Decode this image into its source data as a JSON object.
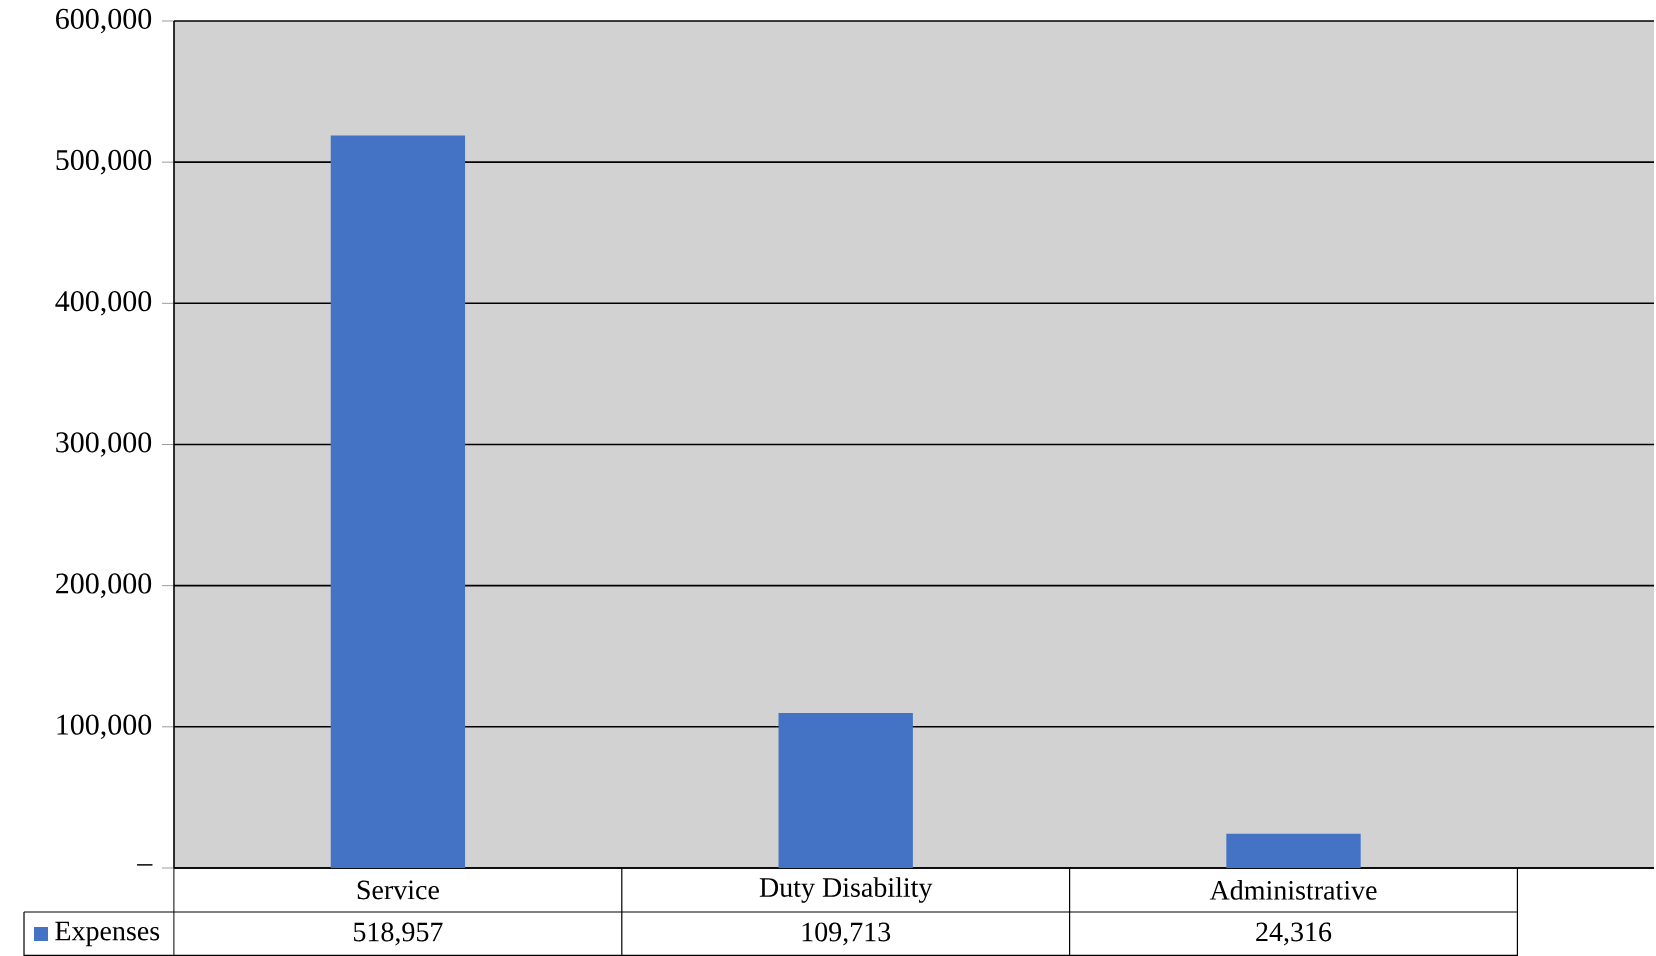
{
  "chart_data": {
    "type": "bar",
    "categories": [
      "Service",
      "Duty Disability",
      "Administrative"
    ],
    "series": [
      {
        "name": "Expenses",
        "color": "#4472c4",
        "values": [
          518957,
          109713,
          24316
        ],
        "value_labels": [
          "518,957",
          "109,713",
          "24,316"
        ]
      }
    ],
    "ylim": [
      0,
      600000
    ],
    "yticks": [
      {
        "value": 0,
        "label": "–"
      },
      {
        "value": 100000,
        "label": "100,000"
      },
      {
        "value": 200000,
        "label": "200,000"
      },
      {
        "value": 300000,
        "label": "300,000"
      },
      {
        "value": 400000,
        "label": "400,000"
      },
      {
        "value": 500000,
        "label": "500,000"
      },
      {
        "value": 600000,
        "label": "600,000"
      }
    ],
    "grid": "y",
    "legend": "bottom left"
  }
}
